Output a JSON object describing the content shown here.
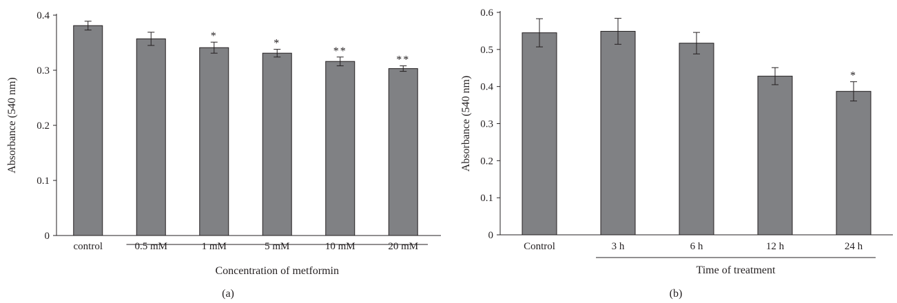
{
  "colors": {
    "bar": "#808184",
    "axis": "#231f20",
    "text": "#231f20"
  },
  "chart_data": [
    {
      "type": "bar",
      "panel_label": "(a)",
      "ylabel": "Absorbance (540 nm)",
      "xlabel": "Concentration of metformin",
      "ylim": [
        0,
        0.4
      ],
      "yticks": [
        0,
        0.1,
        0.2,
        0.3,
        0.4
      ],
      "ytick_labels": [
        "0",
        "0.1",
        "0.2",
        "0.3",
        "0.4"
      ],
      "categories": [
        "control",
        "0.5 mM",
        "1 mM",
        "5 mM",
        "10 mM",
        "20 mM"
      ],
      "values": [
        0.381,
        0.357,
        0.341,
        0.331,
        0.316,
        0.303
      ],
      "errors": [
        0.008,
        0.012,
        0.01,
        0.007,
        0.008,
        0.005
      ],
      "significance": [
        "",
        "",
        "*",
        "*",
        "**",
        "**"
      ],
      "bracket": {
        "from": "0.5 mM",
        "to": "20 mM"
      }
    },
    {
      "type": "bar",
      "panel_label": "(b)",
      "ylabel": "Absorbance (540 nm)",
      "xlabel": "Time of treatment",
      "ylim": [
        0,
        0.6
      ],
      "yticks": [
        0,
        0.1,
        0.2,
        0.3,
        0.4,
        0.5,
        0.6
      ],
      "ytick_labels": [
        "0",
        "0.1",
        "0.2",
        "0.3",
        "0.4",
        "0.5",
        "0.6"
      ],
      "categories": [
        "Control",
        "3 h",
        "6 h",
        "12 h",
        "24 h"
      ],
      "values": [
        0.545,
        0.549,
        0.517,
        0.428,
        0.387
      ],
      "errors": [
        0.038,
        0.035,
        0.029,
        0.023,
        0.026
      ],
      "significance": [
        "",
        "",
        "",
        "",
        "*"
      ],
      "bracket": {
        "from": "3 h",
        "to": "24 h"
      }
    }
  ]
}
